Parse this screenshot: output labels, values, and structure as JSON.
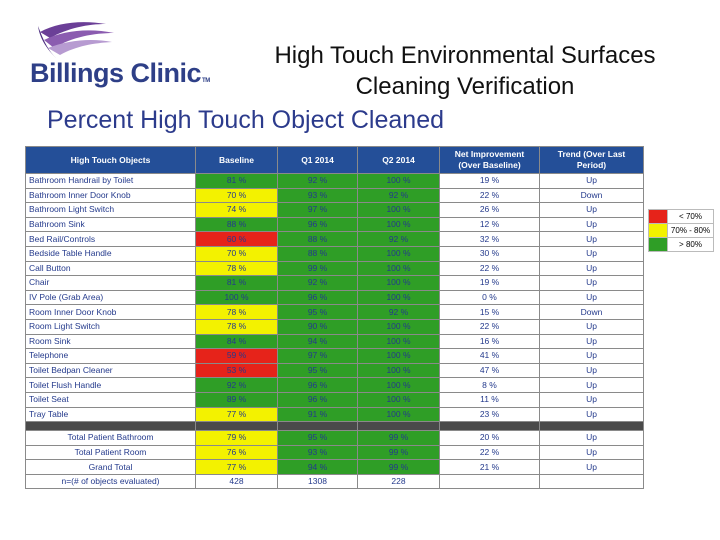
{
  "logo": {
    "text": "Billings Clinic",
    "tm": "TM",
    "colors": [
      "#6b3f97",
      "#8b5cb0",
      "#2e3f87"
    ]
  },
  "title": {
    "line1": "High Touch Environmental Surfaces",
    "line2": "Cleaning Verification"
  },
  "subtitle": "Percent High Touch Object Cleaned",
  "colors": {
    "header": "#244f98",
    "green": "#2f9e26",
    "yellow": "#f3f200",
    "red": "#e6231a"
  },
  "table": {
    "headers": [
      "High Touch Objects",
      "Baseline",
      "Q1 2014",
      "Q2 2014",
      "Net Improvement (Over Baseline)",
      "Trend   (Over Last Period)"
    ],
    "rows": [
      {
        "name": "Bathroom Handrail by Toilet",
        "baseline": "81 %",
        "b_color": "g",
        "q1": "92 %",
        "q1_color": "g",
        "q2": "100 %",
        "q2_color": "g",
        "net": "19 %",
        "trend": "Up"
      },
      {
        "name": "Bathroom Inner Door Knob",
        "baseline": "70 %",
        "b_color": "y",
        "q1": "93 %",
        "q1_color": "g",
        "q2": "92 %",
        "q2_color": "g",
        "net": "22 %",
        "trend": "Down"
      },
      {
        "name": "Bathroom Light Switch",
        "baseline": "74 %",
        "b_color": "y",
        "q1": "97 %",
        "q1_color": "g",
        "q2": "100 %",
        "q2_color": "g",
        "net": "26 %",
        "trend": "Up"
      },
      {
        "name": "Bathroom Sink",
        "baseline": "88 %",
        "b_color": "g",
        "q1": "96 %",
        "q1_color": "g",
        "q2": "100 %",
        "q2_color": "g",
        "net": "12 %",
        "trend": "Up"
      },
      {
        "name": "Bed Rail/Controls",
        "baseline": "60 %",
        "b_color": "r",
        "q1": "88 %",
        "q1_color": "g",
        "q2": "92 %",
        "q2_color": "g",
        "net": "32 %",
        "trend": "Up"
      },
      {
        "name": "Bedside Table Handle",
        "baseline": "70 %",
        "b_color": "y",
        "q1": "88 %",
        "q1_color": "g",
        "q2": "100 %",
        "q2_color": "g",
        "net": "30 %",
        "trend": "Up"
      },
      {
        "name": "Call Button",
        "baseline": "78 %",
        "b_color": "y",
        "q1": "99 %",
        "q1_color": "g",
        "q2": "100 %",
        "q2_color": "g",
        "net": "22 %",
        "trend": "Up"
      },
      {
        "name": "Chair",
        "baseline": "81 %",
        "b_color": "g",
        "q1": "92 %",
        "q1_color": "g",
        "q2": "100 %",
        "q2_color": "g",
        "net": "19 %",
        "trend": "Up"
      },
      {
        "name": "IV Pole (Grab Area)",
        "baseline": "100 %",
        "b_color": "g",
        "q1": "96 %",
        "q1_color": "g",
        "q2": "100 %",
        "q2_color": "g",
        "net": "0 %",
        "trend": "Up"
      },
      {
        "name": "Room Inner Door Knob",
        "baseline": "78 %",
        "b_color": "y",
        "q1": "95 %",
        "q1_color": "g",
        "q2": "92 %",
        "q2_color": "g",
        "net": "15 %",
        "trend": "Down"
      },
      {
        "name": "Room Light Switch",
        "baseline": "78 %",
        "b_color": "y",
        "q1": "90 %",
        "q1_color": "g",
        "q2": "100 %",
        "q2_color": "g",
        "net": "22 %",
        "trend": "Up"
      },
      {
        "name": "Room Sink",
        "baseline": "84 %",
        "b_color": "g",
        "q1": "94 %",
        "q1_color": "g",
        "q2": "100 %",
        "q2_color": "g",
        "net": "16 %",
        "trend": "Up"
      },
      {
        "name": "Telephone",
        "baseline": "59 %",
        "b_color": "r",
        "q1": "97 %",
        "q1_color": "g",
        "q2": "100 %",
        "q2_color": "g",
        "net": "41 %",
        "trend": "Up"
      },
      {
        "name": "Toilet Bedpan Cleaner",
        "baseline": "53 %",
        "b_color": "r",
        "q1": "95 %",
        "q1_color": "g",
        "q2": "100 %",
        "q2_color": "g",
        "net": "47 %",
        "trend": "Up"
      },
      {
        "name": "Toilet Flush Handle",
        "baseline": "92 %",
        "b_color": "g",
        "q1": "96 %",
        "q1_color": "g",
        "q2": "100 %",
        "q2_color": "g",
        "net": "8 %",
        "trend": "Up"
      },
      {
        "name": "Toilet Seat",
        "baseline": "89 %",
        "b_color": "g",
        "q1": "96 %",
        "q1_color": "g",
        "q2": "100 %",
        "q2_color": "g",
        "net": "11 %",
        "trend": "Up"
      },
      {
        "name": "Tray Table",
        "baseline": "77 %",
        "b_color": "y",
        "q1": "91 %",
        "q1_color": "g",
        "q2": "100 %",
        "q2_color": "g",
        "net": "23 %",
        "trend": "Up"
      }
    ],
    "totals": [
      {
        "name": "Total Patient Bathroom",
        "baseline": "79 %",
        "b_color": "y",
        "q1": "95 %",
        "q1_color": "g",
        "q2": "99 %",
        "q2_color": "g",
        "net": "20 %",
        "trend": "Up"
      },
      {
        "name": "Total Patient Room",
        "baseline": "76 %",
        "b_color": "y",
        "q1": "93 %",
        "q1_color": "g",
        "q2": "99 %",
        "q2_color": "g",
        "net": "22 %",
        "trend": "Up"
      },
      {
        "name": "Grand Total",
        "baseline": "77 %",
        "b_color": "y",
        "q1": "94 %",
        "q1_color": "g",
        "q2": "99 %",
        "q2_color": "g",
        "net": "21 %",
        "trend": "Up"
      }
    ],
    "count_row": {
      "label": "n=(# of objects evaluated)",
      "baseline": "428",
      "q1": "1308",
      "q2": "228"
    }
  },
  "legend": [
    {
      "label": "< 70%",
      "color": "r"
    },
    {
      "label": "70% - 80%",
      "color": "y"
    },
    {
      "label": "> 80%",
      "color": "g"
    }
  ]
}
